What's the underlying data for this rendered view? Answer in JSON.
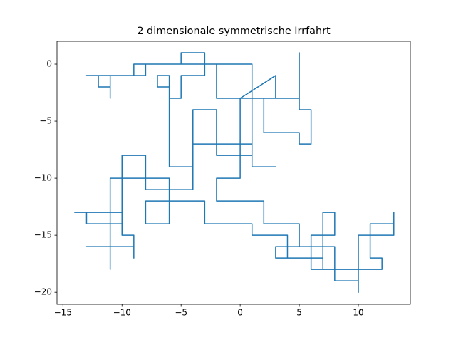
{
  "chart_data": {
    "type": "line",
    "title": "2 dimensionale symmetrische Irrfahrt",
    "x": [
      0,
      -9,
      -9,
      -13,
      -12,
      -12,
      -11,
      -11,
      -11,
      -8,
      -8,
      -5,
      -5,
      -3,
      -3,
      -5,
      -5,
      -6,
      -6,
      -7,
      -7,
      -6,
      -6,
      -4,
      -4,
      -2,
      -2,
      1,
      1,
      -2,
      -2,
      1,
      1,
      5,
      5,
      5,
      6,
      6,
      5,
      5,
      2,
      2,
      3,
      3,
      0,
      0,
      -2,
      -2,
      2,
      2,
      5,
      5,
      3,
      3,
      7,
      7,
      6,
      6,
      8,
      8,
      7,
      7,
      8,
      8,
      10,
      10,
      10,
      13,
      13,
      13,
      11,
      11,
      12,
      12,
      8,
      8,
      4,
      4,
      4,
      1,
      1,
      -3,
      -3,
      -8,
      -8,
      -6,
      -6,
      -11,
      -11,
      -11,
      -13,
      -9,
      -9,
      -9,
      -10,
      -10,
      -14,
      -13,
      -13,
      -10,
      -10,
      -8,
      -8,
      -4,
      -4,
      1,
      1,
      3
    ],
    "series": [
      {
        "color": "#1f77b4",
        "values": [
          0,
          0,
          -1,
          -1,
          -1,
          -2,
          -2,
          -3,
          -1,
          -1,
          0,
          0,
          1,
          1,
          -1,
          -1,
          -3,
          -3,
          -2,
          -2,
          -1,
          -1,
          -9,
          -9,
          -4,
          -4,
          -8,
          -8,
          -3,
          -3,
          0,
          0,
          -3,
          -3,
          1,
          -4,
          -4,
          -7,
          -7,
          -6,
          -6,
          -3,
          -3,
          -1,
          -3,
          -10,
          -10,
          -12,
          -12,
          -14,
          -14,
          -16,
          -16,
          -17,
          -17,
          -18,
          -18,
          -15,
          -15,
          -13,
          -13,
          -18,
          -18,
          -19,
          -19,
          -20,
          -15,
          -15,
          -13,
          -14,
          -14,
          -17,
          -17,
          -18,
          -18,
          -16,
          -16,
          -17,
          -15,
          -15,
          -14,
          -14,
          -12,
          -12,
          -14,
          -14,
          -10,
          -10,
          -18,
          -16,
          -16,
          -16,
          -17,
          -15,
          -15,
          -13,
          -13,
          -13,
          -14,
          -14,
          -8,
          -8,
          -11,
          -11,
          -7,
          -7,
          -9,
          -9
        ]
      }
    ],
    "xlim": [
      -15.5,
      14.4
    ],
    "ylim": [
      -21.05,
      2.0
    ],
    "xticks": [
      {
        "value": -15,
        "label": "−15"
      },
      {
        "value": -10,
        "label": "−10"
      },
      {
        "value": -5,
        "label": "−5"
      },
      0,
      5,
      10
    ],
    "yticks": [
      0,
      {
        "value": -5,
        "label": "−5"
      },
      {
        "value": -10,
        "label": "−10"
      },
      {
        "value": -15,
        "label": "−15"
      },
      {
        "value": -20,
        "label": "−20"
      }
    ]
  }
}
